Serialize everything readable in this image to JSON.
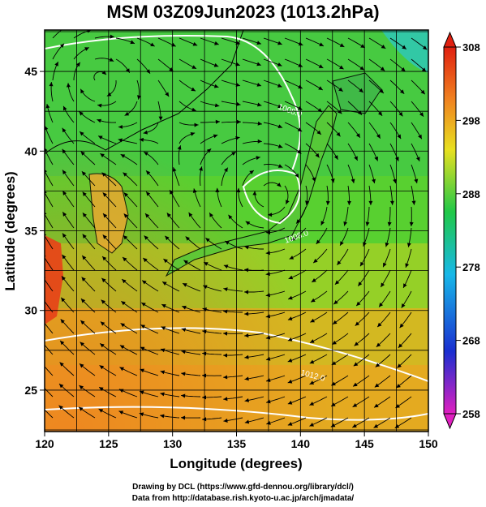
{
  "title": "MSM 03Z09Jun2023 (1013.2hPa)",
  "chart_data": {
    "type": "heatmap",
    "map_region": "Japan and surrounding seas",
    "x_axis": {
      "label": "Longitude (degrees)",
      "range": [
        120,
        150
      ],
      "ticks": [
        120,
        125,
        130,
        135,
        140,
        145,
        150
      ]
    },
    "y_axis": {
      "label": "Latitude  (degrees)",
      "range": [
        22.4,
        47.6
      ],
      "ticks": [
        25,
        30,
        35,
        40,
        45
      ]
    },
    "grid": true,
    "colorbar": {
      "position": "right",
      "min": 258,
      "max": 308,
      "labels": [
        258,
        268,
        278,
        288,
        298,
        308
      ],
      "extend": "both",
      "colors": [
        "#e020c0",
        "#1a2fd0",
        "#18b8e8",
        "#20c848",
        "#e8e020",
        "#f08020",
        "#e02010"
      ]
    },
    "field_shading": "temperature (K)",
    "overlay_vectors": "wind streamlines",
    "pressure_contour_labels": [
      "1008.0",
      "1008.0",
      "1012.0"
    ]
  },
  "footer": {
    "line1": "Drawing by DCL (https://www.gfd-dennou.org/library/dcl/)",
    "line2": "Data from http://database.rish.kyoto-u.ac.jp/arch/jmadata/"
  }
}
